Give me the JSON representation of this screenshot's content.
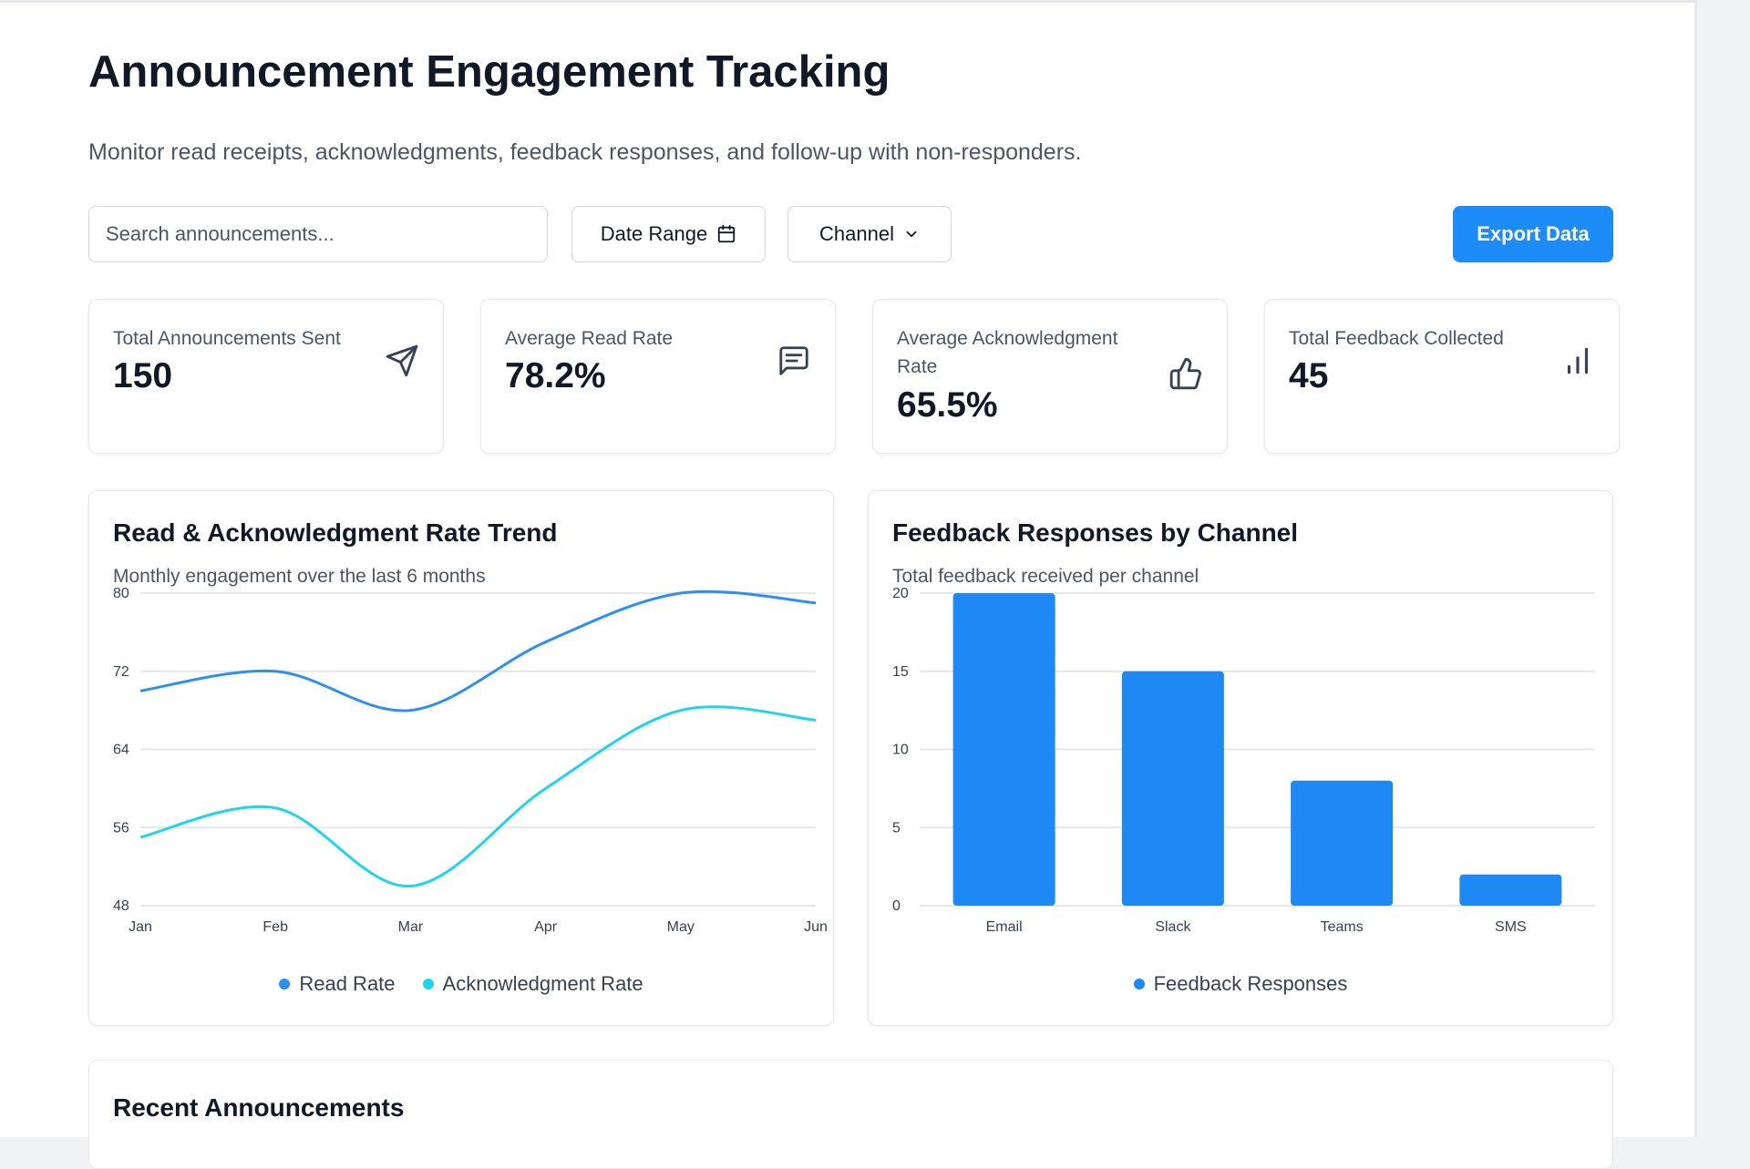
{
  "page": {
    "title": "Announcement Engagement Tracking",
    "subtitle": "Monitor read receipts, acknowledgments, feedback responses, and follow-up with non-responders."
  },
  "toolbar": {
    "search_placeholder": "Search announcements...",
    "date_range_label": "Date Range",
    "channel_label": "Channel",
    "export_label": "Export Data"
  },
  "stats": [
    {
      "label": "Total Announcements Sent",
      "value": "150",
      "icon": "send-icon"
    },
    {
      "label": "Average Read Rate",
      "value": "78.2%",
      "icon": "message-icon"
    },
    {
      "label": "Average Acknowledgment Rate",
      "value": "65.5%",
      "icon": "thumbs-up-icon"
    },
    {
      "label": "Total Feedback Collected",
      "value": "45",
      "icon": "bar-chart-icon"
    }
  ],
  "trend_panel": {
    "title": "Read & Acknowledgment Rate Trend",
    "subtitle": "Monthly engagement over the last 6 months"
  },
  "feedback_panel": {
    "title": "Feedback Responses by Channel",
    "subtitle": "Total feedback received per channel"
  },
  "recent": {
    "title": "Recent Announcements"
  },
  "colors": {
    "accent": "#1d8cf8",
    "read": "#2f8ff0",
    "ack": "#22d3ee",
    "bar": "#1e88f5"
  },
  "chart_data": [
    {
      "type": "line",
      "title": "Read & Acknowledgment Rate Trend",
      "categories": [
        "Jan",
        "Feb",
        "Mar",
        "Apr",
        "May",
        "Jun"
      ],
      "ylim": [
        48,
        80
      ],
      "yticks": [
        48,
        56,
        64,
        72,
        80
      ],
      "grid": true,
      "legend": "bottom-center",
      "series": [
        {
          "name": "Read Rate",
          "values": [
            70,
            72,
            68,
            75,
            80,
            79
          ]
        },
        {
          "name": "Acknowledgment Rate",
          "values": [
            55,
            58,
            50,
            60,
            68,
            67
          ]
        }
      ]
    },
    {
      "type": "bar",
      "title": "Feedback Responses by Channel",
      "categories": [
        "Email",
        "Slack",
        "Teams",
        "SMS"
      ],
      "ylim": [
        0,
        20
      ],
      "yticks": [
        0,
        5,
        10,
        15,
        20
      ],
      "grid": true,
      "legend": "bottom-center",
      "series": [
        {
          "name": "Feedback Responses",
          "values": [
            20,
            15,
            8,
            2
          ]
        }
      ]
    }
  ]
}
